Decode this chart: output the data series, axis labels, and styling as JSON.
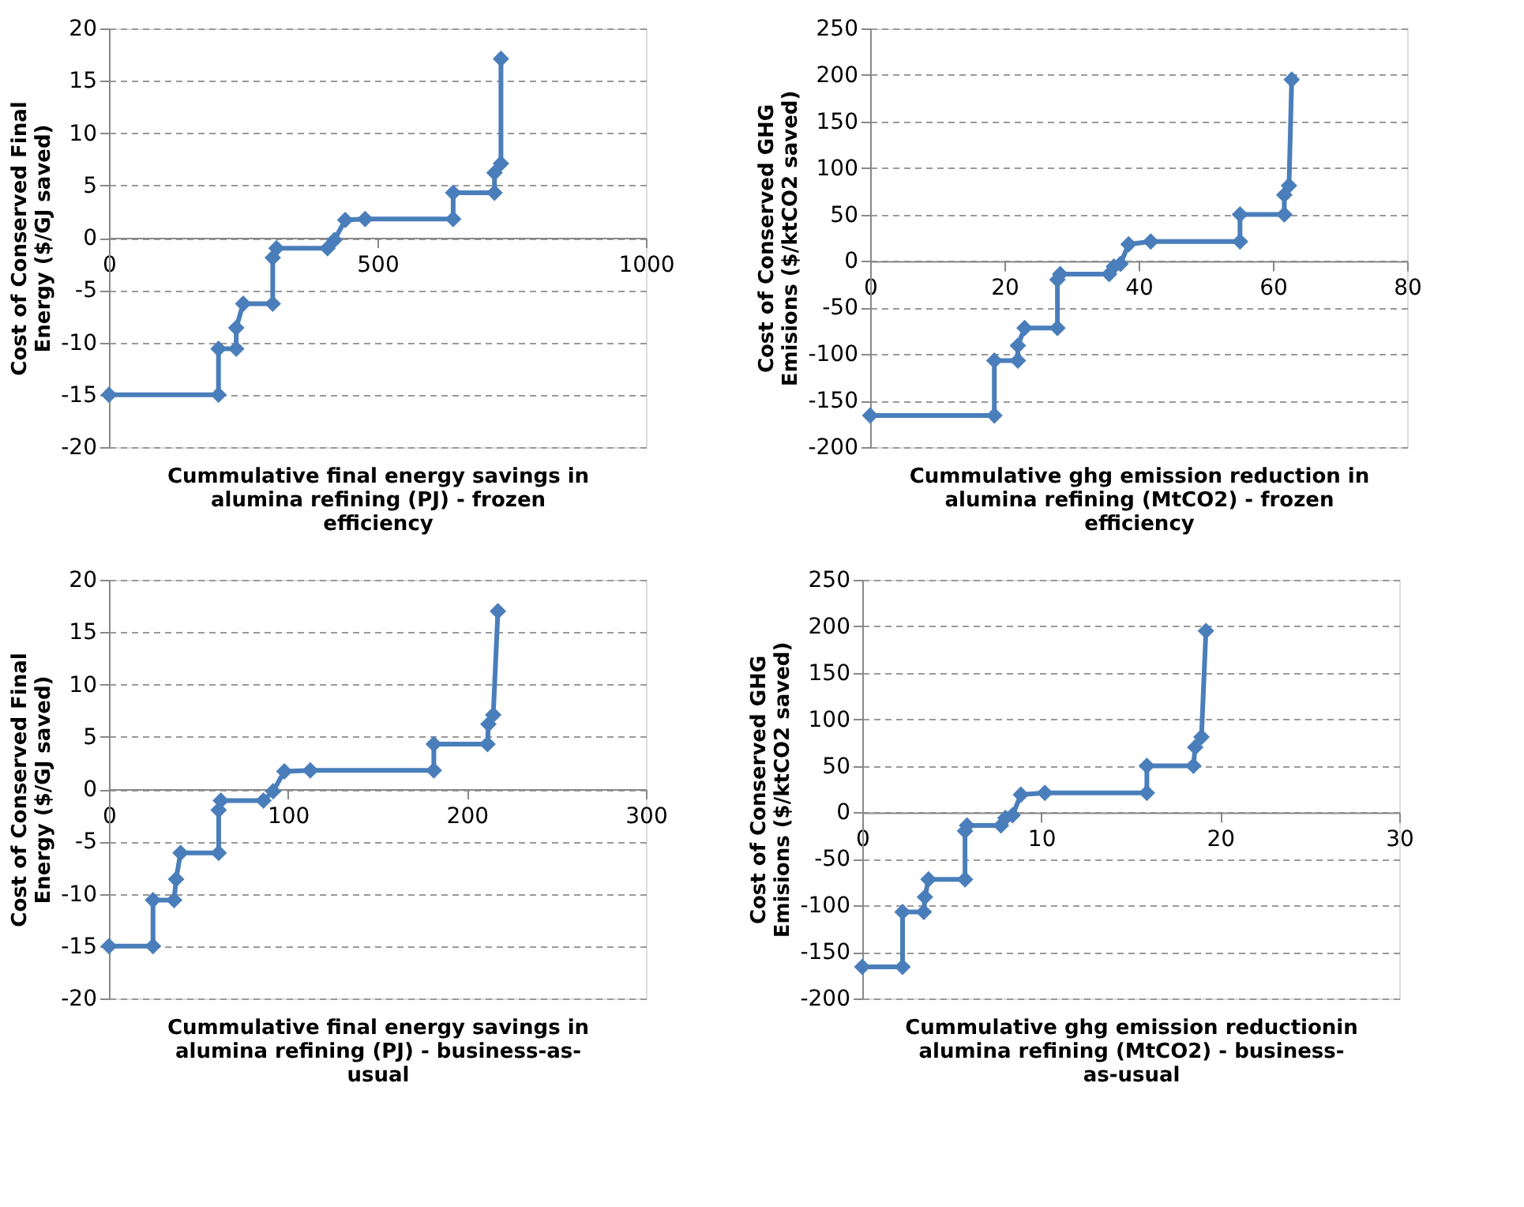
{
  "chart_data": [
    {
      "type": "line",
      "xlabel": "Cummulative final energy savings in alumina refining (PJ) - frozen efficiency",
      "ylabel": "Cost of Conserved Final Energy ($/GJ saved)",
      "xlim": [
        0,
        1000
      ],
      "xticks": [
        0,
        500,
        1000
      ],
      "ylim": [
        -20,
        20
      ],
      "yticks": [
        -20,
        -15,
        -10,
        -5,
        0,
        5,
        10,
        15,
        20
      ],
      "grid": "y",
      "marker": "diamond",
      "line_style": "solid",
      "series": [
        {
          "color": "#4a7ebb",
          "x": [
            0,
            204,
            204,
            237,
            237,
            250,
            305,
            305,
            312,
            407,
            420,
            440,
            477,
            641,
            641,
            718,
            718,
            730,
            730
          ],
          "values": [
            -15,
            -15,
            -10.6,
            -10.6,
            -8.6,
            -6.3,
            -6.3,
            -1.9,
            -1.0,
            -1.0,
            -0.2,
            1.7,
            1.8,
            1.8,
            4.3,
            4.3,
            6.2,
            7.1,
            17.1
          ]
        }
      ]
    },
    {
      "type": "line",
      "xlabel": "Cummulative ghg emission reduction in alumina refining (MtCO2) - frozen efficiency",
      "ylabel": "Cost of Conserved GHG Emisions ($/ktCO2 saved)",
      "xlim": [
        0,
        80
      ],
      "xticks": [
        0,
        20,
        40,
        60,
        80
      ],
      "ylim": [
        -200,
        250
      ],
      "yticks": [
        -200,
        -150,
        -100,
        -50,
        0,
        50,
        100,
        150,
        200,
        250
      ],
      "grid": "y",
      "marker": "diamond",
      "line_style": "solid",
      "series": [
        {
          "color": "#4a7ebb",
          "x": [
            0,
            18.5,
            18.5,
            22,
            22,
            23,
            27.9,
            27.9,
            28.3,
            35.6,
            36.3,
            37.3,
            38.5,
            41.8,
            55.1,
            55.1,
            61.7,
            61.7,
            62.4,
            62.8
          ],
          "values": [
            -166,
            -166,
            -107,
            -107,
            -91,
            -72,
            -72,
            -20,
            -14,
            -14,
            -6,
            -3,
            18,
            21,
            21,
            50,
            50,
            71,
            81,
            195
          ]
        }
      ]
    },
    {
      "type": "line",
      "xlabel": "Cummulative final energy savings in alumina refining (PJ) - business-as-usual",
      "ylabel": "Cost of Conserved Final Energy ($/GJ saved)",
      "xlim": [
        0,
        300
      ],
      "xticks": [
        0,
        100,
        200,
        300
      ],
      "ylim": [
        -20,
        20
      ],
      "yticks": [
        -20,
        -15,
        -10,
        -5,
        0,
        5,
        10,
        15,
        20
      ],
      "grid": "y",
      "marker": "diamond",
      "line_style": "solid",
      "series": [
        {
          "color": "#4a7ebb",
          "x": [
            0,
            24.6,
            24.6,
            36.4,
            37.5,
            40,
            61.3,
            61.3,
            62.5,
            86.3,
            91.7,
            98,
            112.5,
            181.5,
            181.5,
            211.5,
            212,
            214.7,
            217.3
          ],
          "values": [
            -15,
            -15,
            -10.6,
            -10.6,
            -8.6,
            -6.1,
            -6.1,
            -2.0,
            -1.1,
            -1.1,
            -0.2,
            1.7,
            1.8,
            1.8,
            4.3,
            4.3,
            6.2,
            7.1,
            17.0
          ]
        }
      ]
    },
    {
      "type": "line",
      "xlabel": "Cummulative ghg emission reductionin alumina refining (MtCO2) - business-as-usual",
      "ylabel": "Cost of Conserved GHG Emisions ($/ktCO2 saved)",
      "xlim": [
        0,
        30
      ],
      "xticks": [
        0,
        10,
        20,
        30
      ],
      "ylim": [
        -200,
        250
      ],
      "yticks": [
        -200,
        -150,
        -100,
        -50,
        0,
        50,
        100,
        150,
        200,
        250
      ],
      "grid": "y",
      "marker": "diamond",
      "line_style": "solid",
      "series": [
        {
          "color": "#4a7ebb",
          "x": [
            0,
            2.25,
            2.25,
            3.44,
            3.5,
            3.7,
            5.74,
            5.74,
            5.85,
            7.75,
            8.0,
            8.4,
            8.86,
            10.2,
            15.9,
            15.9,
            18.5,
            18.6,
            18.95,
            19.2
          ],
          "values": [
            -166,
            -166,
            -107,
            -107,
            -91,
            -72,
            -72,
            -20,
            -14,
            -14,
            -6,
            -3,
            19,
            21,
            21,
            50,
            50,
            70,
            81,
            195
          ]
        }
      ]
    }
  ]
}
